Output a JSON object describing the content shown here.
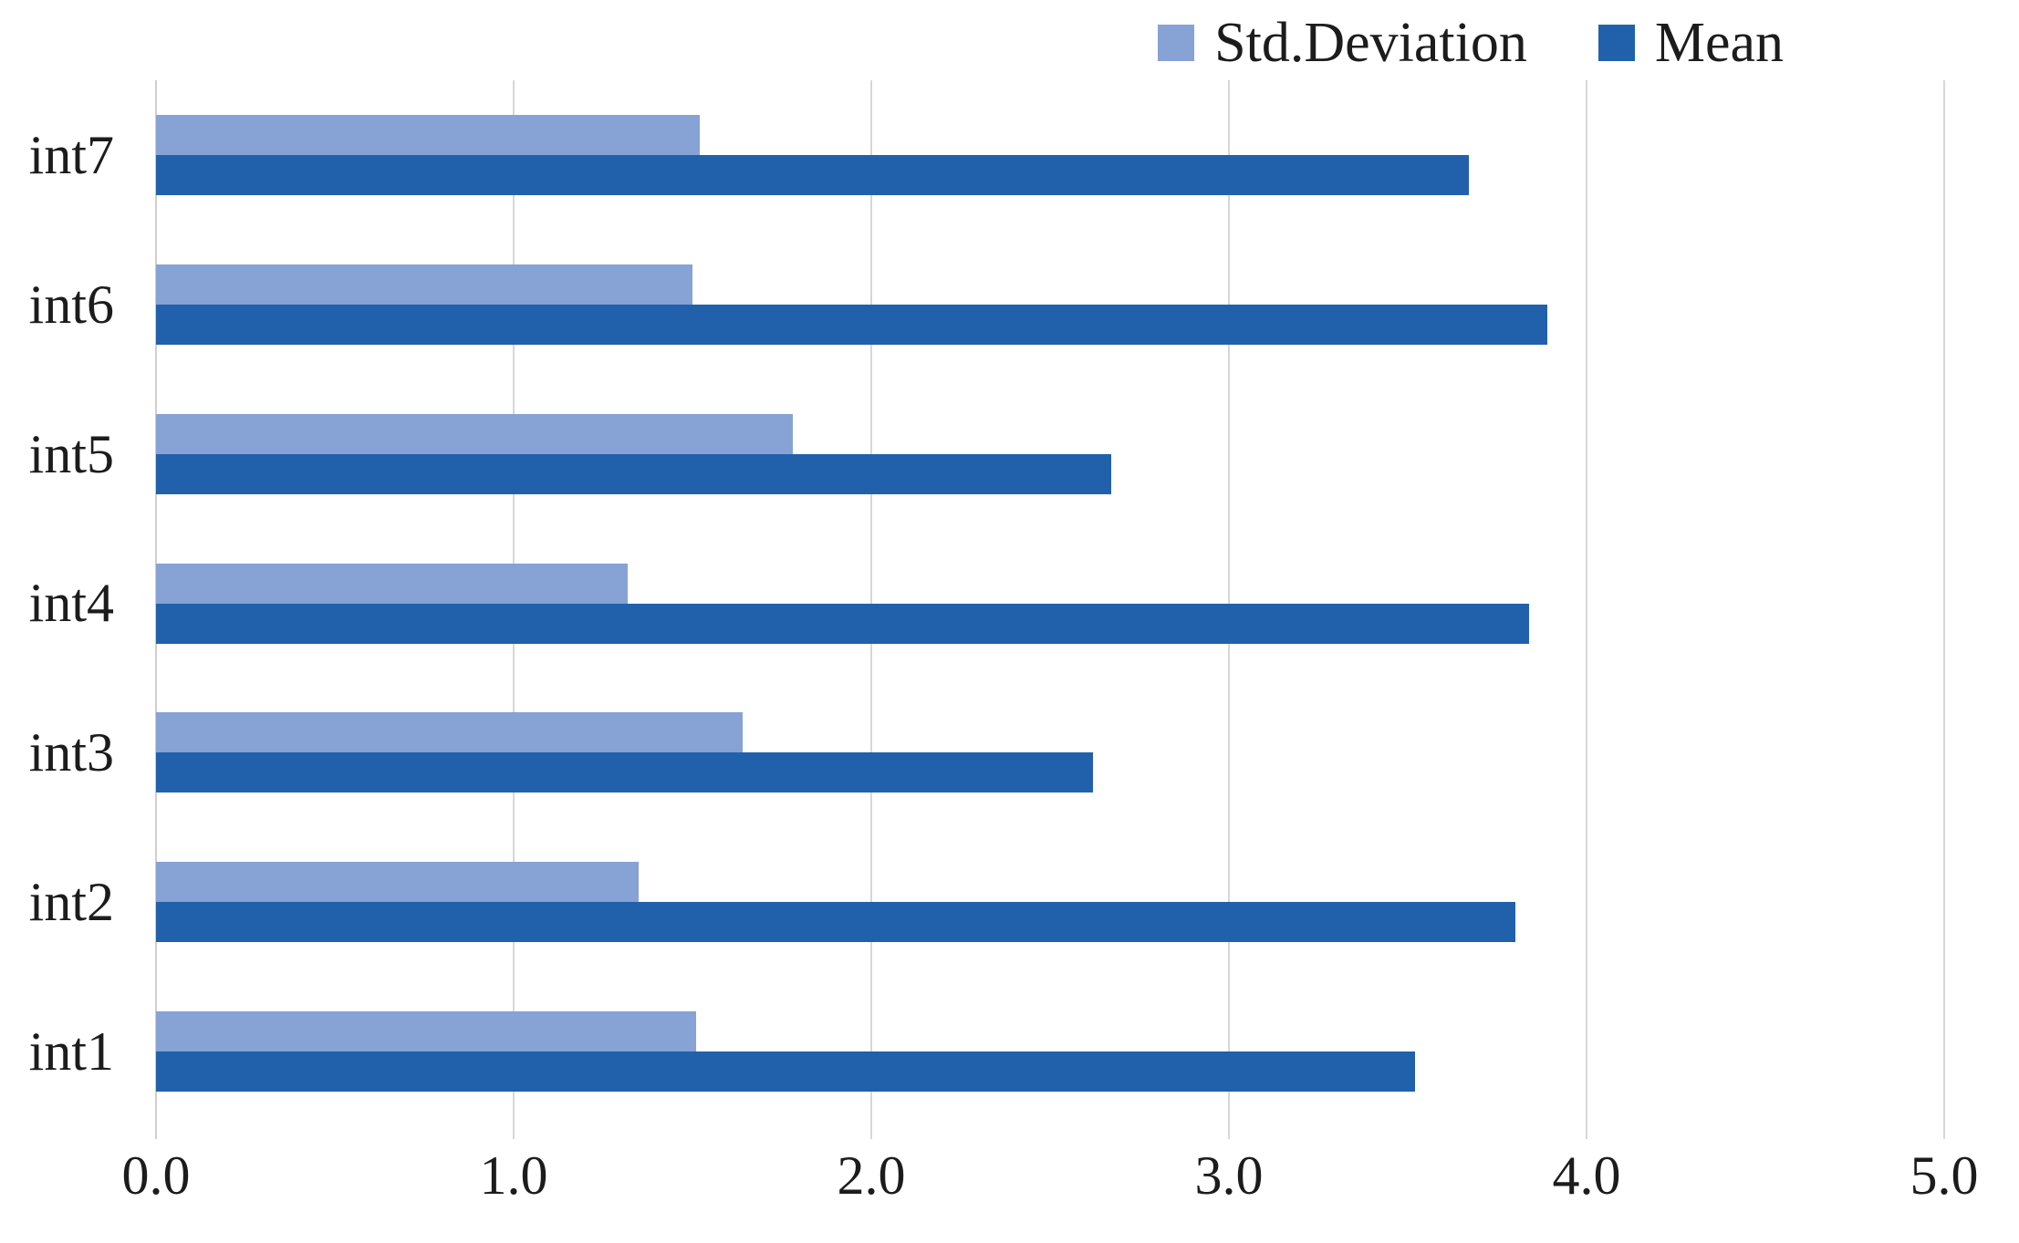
{
  "chart_data": {
    "type": "bar",
    "orientation": "horizontal",
    "title": "",
    "xlabel": "",
    "ylabel": "",
    "categories_top_to_bottom": [
      "int7",
      "int6",
      "int5",
      "int4",
      "int3",
      "int2",
      "int1"
    ],
    "series": [
      {
        "name": "Std.Deviation",
        "color": "#87a2d4",
        "values": [
          1.52,
          1.5,
          1.78,
          1.32,
          1.64,
          1.35,
          1.51
        ]
      },
      {
        "name": "Mean",
        "color": "#2161ac",
        "values": [
          3.67,
          3.89,
          2.67,
          3.84,
          2.62,
          3.8,
          3.52
        ]
      }
    ],
    "xlim": [
      0,
      5
    ],
    "x_ticks": [
      "0.0",
      "1.0",
      "2.0",
      "3.0",
      "4.0",
      "5.0"
    ],
    "x_tick_values": [
      0.0,
      1.0,
      2.0,
      3.0,
      4.0,
      5.0
    ],
    "grid": true,
    "gridline_color": "#d7d7d7",
    "background_color": "#ffffff",
    "legend_position": "top-right",
    "legend_order": [
      "Std.Deviation",
      "Mean"
    ]
  },
  "legend": {
    "items": [
      {
        "label": "Std.Deviation",
        "color": "#87a2d4"
      },
      {
        "label": "Mean",
        "color": "#2161ac"
      }
    ]
  }
}
